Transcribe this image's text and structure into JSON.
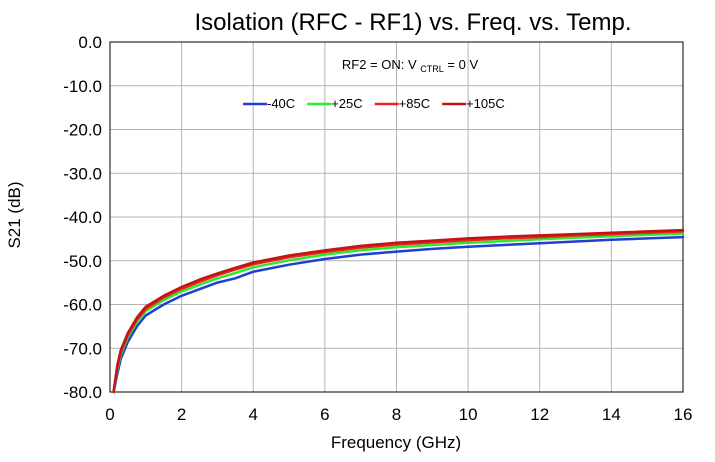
{
  "chart_data": {
    "type": "line",
    "title": "Isolation (RFC - RF1) vs. Freq. vs. Temp.",
    "xlabel": "Frequency (GHz)",
    "ylabel": "S21 (dB)",
    "xlim": [
      0,
      16
    ],
    "ylim": [
      -80,
      0
    ],
    "xticks": [
      0,
      2,
      4,
      6,
      8,
      10,
      12,
      14,
      16
    ],
    "yticks": [
      0,
      -10,
      -20,
      -30,
      -40,
      -50,
      -60,
      -70,
      -80
    ],
    "xtick_labels": [
      "0",
      "2",
      "4",
      "6",
      "8",
      "10",
      "12",
      "14",
      "16"
    ],
    "ytick_labels": [
      "0.0",
      "-10.0",
      "-20.0",
      "-30.0",
      "-40.0",
      "-50.0",
      "-60.0",
      "-70.0",
      "-80.0"
    ],
    "grid": true,
    "legend_position": "top-center",
    "annotation": {
      "prefix": "RF2 = ON: V",
      "subscript": "CTRL",
      "suffix": " = 0 V"
    },
    "series": [
      {
        "name": "-40C",
        "color": "#1f3fd0",
        "x": [
          0.1,
          0.2,
          0.3,
          0.5,
          0.75,
          1,
          1.5,
          2,
          2.5,
          3,
          3.5,
          4,
          5,
          6,
          7,
          8,
          9,
          10,
          11,
          12,
          13,
          14,
          15,
          16
        ],
        "y": [
          -80,
          -76,
          -72.5,
          -68.5,
          -65,
          -62.5,
          -60,
          -58,
          -56.5,
          -55,
          -54,
          -52.5,
          -50.9,
          -49.6,
          -48.6,
          -47.9,
          -47.3,
          -46.8,
          -46.4,
          -46,
          -45.6,
          -45.2,
          -44.9,
          -44.6
        ]
      },
      {
        "name": "+25C",
        "color": "#2ee82e",
        "x": [
          0.1,
          0.2,
          0.3,
          0.5,
          0.75,
          1,
          1.5,
          2,
          2.5,
          3,
          3.5,
          4,
          5,
          6,
          7,
          8,
          9,
          10,
          11,
          12,
          13,
          14,
          15,
          16
        ],
        "y": [
          -80,
          -75,
          -71.5,
          -67.5,
          -64,
          -61.5,
          -59,
          -57,
          -55.5,
          -54,
          -52.8,
          -51.5,
          -49.9,
          -48.6,
          -47.6,
          -46.9,
          -46.4,
          -45.9,
          -45.5,
          -45.1,
          -44.7,
          -44.4,
          -44.1,
          -43.8
        ]
      },
      {
        "name": "+85C",
        "color": "#e8251f",
        "x": [
          0.1,
          0.2,
          0.3,
          0.5,
          0.75,
          1,
          1.5,
          2,
          2.5,
          3,
          3.5,
          4,
          5,
          6,
          7,
          8,
          9,
          10,
          11,
          12,
          13,
          14,
          15,
          16
        ],
        "y": [
          -80,
          -74.5,
          -71,
          -67,
          -63.5,
          -61,
          -58.4,
          -56.4,
          -54.8,
          -53.3,
          -52,
          -50.8,
          -49.2,
          -48,
          -47,
          -46.3,
          -45.8,
          -45.3,
          -44.9,
          -44.6,
          -44.2,
          -43.9,
          -43.6,
          -43.3
        ]
      },
      {
        "name": "+105C",
        "color": "#c21414",
        "x": [
          0.1,
          0.2,
          0.3,
          0.5,
          0.75,
          1,
          1.5,
          2,
          2.5,
          3,
          3.5,
          4,
          5,
          6,
          7,
          8,
          9,
          10,
          11,
          12,
          13,
          14,
          15,
          16
        ],
        "y": [
          -80,
          -74,
          -70.5,
          -66.5,
          -63,
          -60.5,
          -58,
          -56,
          -54.3,
          -52.9,
          -51.6,
          -50.4,
          -48.8,
          -47.6,
          -46.6,
          -45.9,
          -45.4,
          -44.9,
          -44.5,
          -44.2,
          -43.9,
          -43.6,
          -43.3,
          -43
        ]
      }
    ]
  }
}
